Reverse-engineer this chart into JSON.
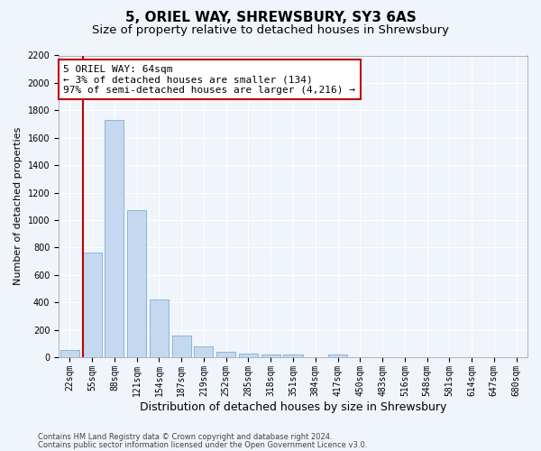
{
  "title1": "5, ORIEL WAY, SHREWSBURY, SY3 6AS",
  "title2": "Size of property relative to detached houses in Shrewsbury",
  "xlabel": "Distribution of detached houses by size in Shrewsbury",
  "ylabel": "Number of detached properties",
  "categories": [
    "22sqm",
    "55sqm",
    "88sqm",
    "121sqm",
    "154sqm",
    "187sqm",
    "219sqm",
    "252sqm",
    "285sqm",
    "318sqm",
    "351sqm",
    "384sqm",
    "417sqm",
    "450sqm",
    "483sqm",
    "516sqm",
    "548sqm",
    "581sqm",
    "614sqm",
    "647sqm",
    "680sqm"
  ],
  "values": [
    50,
    760,
    1730,
    1070,
    420,
    155,
    80,
    38,
    28,
    20,
    18,
    0,
    20,
    0,
    0,
    0,
    0,
    0,
    0,
    0,
    0
  ],
  "bar_color": "#c5d8f0",
  "bar_edge_color": "#7ab0d4",
  "vline_color": "#c00000",
  "annotation_text": "5 ORIEL WAY: 64sqm\n← 3% of detached houses are smaller (134)\n97% of semi-detached houses are larger (4,216) →",
  "annotation_box_color": "#ffffff",
  "annotation_box_edge": "#c00000",
  "ylim": [
    0,
    2200
  ],
  "yticks": [
    0,
    200,
    400,
    600,
    800,
    1000,
    1200,
    1400,
    1600,
    1800,
    2000,
    2200
  ],
  "footer1": "Contains HM Land Registry data © Crown copyright and database right 2024.",
  "footer2": "Contains public sector information licensed under the Open Government Licence v3.0.",
  "background_color": "#f0f4fb",
  "plot_background": "#f0f4fb",
  "grid_color": "#ffffff",
  "title1_fontsize": 11,
  "title2_fontsize": 9.5,
  "tick_fontsize": 7,
  "ylabel_fontsize": 8,
  "xlabel_fontsize": 9,
  "footer_fontsize": 6,
  "annot_fontsize": 8
}
